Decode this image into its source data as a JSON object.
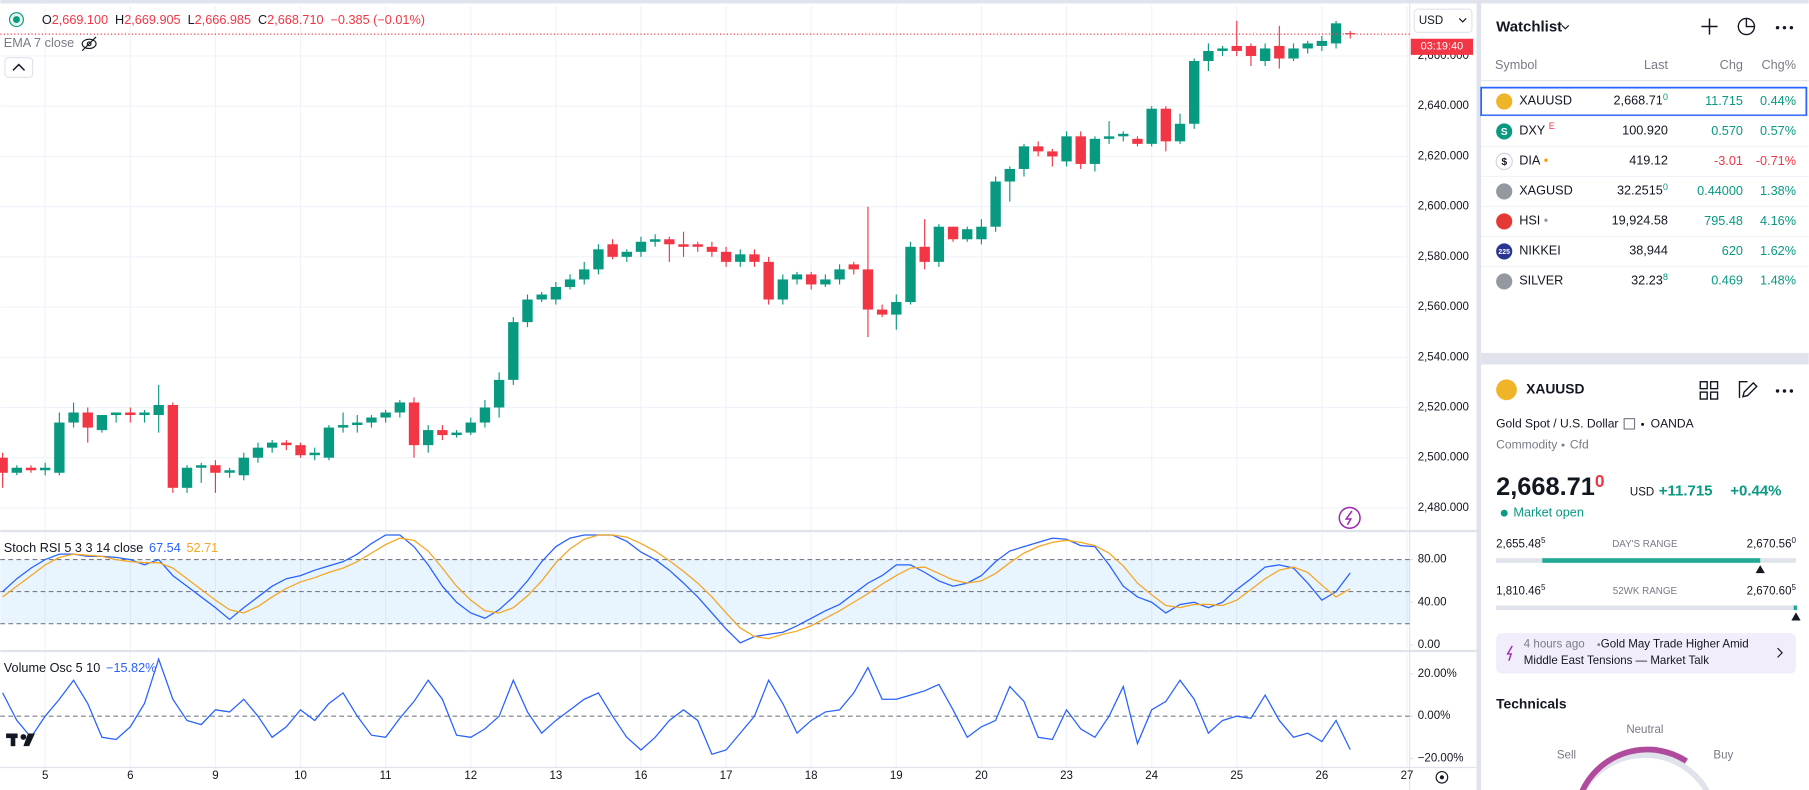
{
  "chart_header": {
    "ohlc": [
      {
        "key": "O",
        "value": "2,669.100"
      },
      {
        "key": "H",
        "value": "2,669.905"
      },
      {
        "key": "L",
        "value": "2,666.985"
      },
      {
        "key": "C",
        "value": "2,668.710"
      }
    ],
    "change": "−0.385 (−0.01%)",
    "indicator": "EMA 7 close",
    "currency": "USD",
    "countdown": "03:19:40"
  },
  "chart_data": [
    {
      "type": "candlestick",
      "up_color": "#089981",
      "down_color": "#f23645",
      "grid": true,
      "categories": [
        null,
        null,
        null,
        "5",
        null,
        null,
        null,
        null,
        null,
        "6",
        null,
        null,
        null,
        null,
        null,
        "9",
        null,
        null,
        null,
        null,
        null,
        "10",
        null,
        null,
        null,
        null,
        null,
        "11",
        null,
        null,
        null,
        null,
        null,
        "12",
        null,
        null,
        null,
        null,
        null,
        "13",
        null,
        null,
        null,
        null,
        null,
        "16",
        null,
        null,
        null,
        null,
        null,
        "17",
        null,
        null,
        null,
        null,
        null,
        "18",
        null,
        null,
        null,
        null,
        null,
        "19",
        null,
        null,
        null,
        null,
        null,
        "20",
        null,
        null,
        null,
        null,
        null,
        "23",
        null,
        null,
        null,
        null,
        null,
        "24",
        null,
        null,
        null,
        null,
        null,
        "25",
        null,
        null,
        null,
        null,
        null,
        "26",
        null,
        null,
        null,
        null,
        null,
        "27"
      ],
      "open": [
        2500,
        2494,
        2496,
        2495,
        2494,
        2514,
        2518,
        2511,
        2517,
        2518,
        2517,
        2517,
        2521,
        2488,
        2496,
        2497,
        2494,
        2493,
        2500,
        2504,
        2506,
        2505,
        2501,
        2500,
        2512,
        2513,
        2514,
        2516,
        2518,
        2522,
        2505,
        2511,
        2509,
        2510,
        2514,
        2520,
        2531,
        2554,
        2563,
        2563,
        2568,
        2571,
        2575,
        2585,
        2580,
        2582,
        2586,
        2587,
        2585,
        2585,
        2584,
        2582,
        2578,
        2581,
        2578,
        2563,
        2571,
        2573,
        2569,
        2571,
        2577,
        2575,
        2559,
        2557,
        2562,
        2584,
        2578,
        2592,
        2587,
        2587,
        2592,
        2610,
        2615,
        2624,
        2622,
        2618,
        2628,
        2617,
        2627,
        2628,
        2627,
        2625,
        2639,
        2626,
        2633,
        2658,
        2662,
        2664,
        2664,
        2658,
        2664,
        2659,
        2663,
        2664,
        2665,
        2669.1,
        null,
        null,
        null,
        null
      ],
      "high": [
        2502,
        2497,
        2497,
        2498,
        2518,
        2522,
        2520,
        2517,
        2518,
        2520,
        2519,
        2529,
        2522,
        2497,
        2498,
        2499,
        2496,
        2502,
        2506,
        2507,
        2507,
        2506,
        2504,
        2513,
        2518,
        2517,
        2517,
        2519,
        2523,
        2524,
        2513,
        2513,
        2511,
        2516,
        2523,
        2534,
        2556,
        2565,
        2566,
        2570,
        2573,
        2578,
        2585,
        2587,
        2583,
        2588,
        2589,
        2588,
        2590,
        2586,
        2586,
        2584,
        2583,
        2583,
        2580,
        2573,
        2574,
        2574,
        2573,
        2577,
        2578,
        2600,
        2561,
        2565,
        2586,
        2595,
        2593,
        2592,
        2592,
        2595,
        2612,
        2616,
        2625,
        2626,
        2623,
        2630,
        2630,
        2628,
        2634,
        2630,
        2628,
        2640,
        2640,
        2637,
        2659,
        2665,
        2664,
        2674,
        2665,
        2665,
        2672,
        2665,
        2666,
        2668,
        2674,
        2669.905,
        null,
        null,
        null,
        null
      ],
      "low": [
        2488,
        2493,
        2494,
        2493,
        2493,
        2512,
        2506,
        2510,
        2514,
        2514,
        2514,
        2510,
        2486,
        2486,
        2490,
        2486,
        2492,
        2491,
        2498,
        2502,
        2503,
        2500,
        2499,
        2499,
        2510,
        2510,
        2512,
        2514,
        2516,
        2500,
        2502,
        2507,
        2508,
        2509,
        2512,
        2516,
        2529,
        2552,
        2562,
        2561,
        2567,
        2569,
        2573,
        2579,
        2578,
        2580,
        2584,
        2578,
        2580,
        2582,
        2580,
        2576,
        2576,
        2576,
        2561,
        2561,
        2569,
        2567,
        2568,
        2569,
        2573,
        2548,
        2556,
        2551,
        2561,
        2575,
        2576,
        2586,
        2586,
        2585,
        2590,
        2602,
        2612,
        2620,
        2616,
        2616,
        2615,
        2614,
        2625,
        2626,
        2624,
        2624,
        2622,
        2625,
        2631,
        2654,
        2660,
        2660,
        2656,
        2656,
        2655,
        2658,
        2661,
        2662,
        2663,
        2666.985,
        null,
        null,
        null,
        null
      ],
      "close": [
        2494,
        2496,
        2495,
        2496,
        2514,
        2518,
        2512,
        2517,
        2518,
        2517,
        2518,
        2521,
        2488,
        2496,
        2497,
        2494,
        2495,
        2500,
        2504,
        2506,
        2505,
        2501,
        2502,
        2512,
        2513,
        2514,
        2516,
        2518,
        2522,
        2505,
        2511,
        2509,
        2510,
        2514,
        2520,
        2531,
        2554,
        2563,
        2565,
        2568,
        2571,
        2575,
        2583,
        2580,
        2582,
        2586,
        2587,
        2585,
        2584,
        2584,
        2582,
        2578,
        2581,
        2578,
        2563,
        2571,
        2573,
        2569,
        2571,
        2575,
        2575,
        2559,
        2557,
        2562,
        2584,
        2578,
        2592,
        2587,
        2591,
        2592,
        2610,
        2615,
        2624,
        2622,
        2620,
        2628,
        2617,
        2627,
        2628,
        2629,
        2625,
        2639,
        2626,
        2633,
        2658,
        2662,
        2663,
        2662,
        2660,
        2663,
        2659,
        2663,
        2665,
        2666,
        2673,
        2668.71,
        null,
        null,
        null,
        null
      ],
      "ylim": [
        2471,
        2680
      ],
      "yticks": [
        {
          "value": 2480,
          "label": "2,480.000"
        },
        {
          "value": 2500,
          "label": "2,500.000"
        },
        {
          "value": 2520,
          "label": "2,520.000"
        },
        {
          "value": 2540,
          "label": "2,540.000"
        },
        {
          "value": 2560,
          "label": "2,560.000"
        },
        {
          "value": 2580,
          "label": "2,580.000"
        },
        {
          "value": 2600,
          "label": "2,600.000"
        },
        {
          "value": 2620,
          "label": "2,620.000"
        },
        {
          "value": 2640,
          "label": "2,640.000"
        },
        {
          "value": 2660,
          "label": "2,660.000"
        }
      ]
    },
    {
      "type": "line",
      "title": "Stoch RSI 5 3 3 14 close",
      "grid": true,
      "levels": [
        80,
        50,
        20
      ],
      "band_color": "#2196f3",
      "series": [
        {
          "color": "#2962ff",
          "values": [
            50,
            62,
            72,
            80,
            85,
            85,
            83,
            83,
            82,
            80,
            75,
            80,
            65,
            55,
            45,
            35,
            24,
            35,
            45,
            55,
            62,
            65,
            70,
            74,
            78,
            85,
            95,
            103,
            103,
            92,
            75,
            55,
            40,
            30,
            25,
            33,
            45,
            60,
            78,
            92,
            100,
            103,
            103,
            103,
            97,
            87,
            80,
            70,
            58,
            45,
            30,
            15,
            2,
            8,
            10,
            12,
            18,
            25,
            32,
            38,
            48,
            58,
            65,
            75,
            75,
            68,
            60,
            55,
            58,
            65,
            78,
            88,
            92,
            96,
            100,
            99,
            93,
            92,
            75,
            55,
            45,
            40,
            30,
            38,
            40,
            35,
            40,
            52,
            62,
            73,
            75,
            72,
            58,
            42,
            50,
            67.54,
            null,
            null,
            null,
            null
          ]
        },
        {
          "color": "#f5a623",
          "values": [
            45,
            55,
            65,
            75,
            82,
            85,
            84,
            83,
            80,
            78,
            77,
            77,
            72,
            62,
            52,
            42,
            33,
            30,
            36,
            45,
            53,
            59,
            63,
            68,
            72,
            78,
            86,
            94,
            100,
            98,
            88,
            72,
            55,
            42,
            32,
            30,
            35,
            46,
            60,
            77,
            90,
            99,
            103,
            103,
            101,
            95,
            88,
            79,
            69,
            58,
            45,
            30,
            16,
            8,
            6,
            10,
            13,
            18,
            25,
            32,
            40,
            48,
            57,
            65,
            72,
            73,
            67,
            61,
            58,
            60,
            67,
            77,
            86,
            92,
            96,
            98,
            96,
            93,
            86,
            74,
            58,
            47,
            37,
            35,
            38,
            38,
            37,
            42,
            52,
            62,
            70,
            73,
            68,
            56,
            45,
            52.71,
            null,
            null,
            null,
            null
          ]
        }
      ],
      "ylim": [
        -4,
        105
      ],
      "yticks": [
        {
          "value": 0,
          "label": "0.00"
        },
        {
          "value": 40,
          "label": "40.00"
        },
        {
          "value": 80,
          "label": "80.00"
        }
      ]
    },
    {
      "type": "line",
      "title": "Volume Osc 5 10",
      "grid": true,
      "levels": [
        0
      ],
      "series": [
        {
          "color": "#2962ff",
          "values": [
            11,
            -2,
            -10,
            0,
            8,
            17,
            6,
            -10,
            -11,
            -5,
            6,
            27,
            8,
            -2,
            -4,
            3,
            2,
            8,
            0,
            -10,
            -5,
            3,
            -2,
            6,
            11,
            0,
            -9,
            -10,
            -1,
            7,
            17,
            8,
            -9,
            -10,
            -6,
            0,
            17,
            2,
            -8,
            -2,
            3,
            8,
            11,
            0,
            -10,
            -16,
            -10,
            -2,
            3,
            -2,
            -18,
            -16,
            -8,
            0,
            17,
            6,
            -8,
            -2,
            2,
            3,
            11,
            23,
            8,
            8,
            10,
            12,
            15,
            3,
            -10,
            -5,
            -2,
            14,
            7,
            -10,
            -11,
            3,
            -6,
            -10,
            0,
            14,
            -13,
            3,
            7,
            17,
            8,
            -8,
            -2,
            0,
            -1,
            10,
            -2,
            -10,
            -8,
            -12,
            -2,
            -15.82,
            null,
            null,
            null,
            null
          ],
          "value_labels": [
            null,
            null,
            null,
            null,
            null,
            null,
            null,
            null,
            null,
            null,
            null,
            null,
            null,
            null,
            null,
            null,
            null,
            null,
            null,
            null,
            null,
            null,
            null,
            null,
            null,
            null,
            null,
            null,
            null,
            null,
            null,
            null,
            null,
            null,
            null,
            null,
            null,
            null,
            null,
            null,
            null,
            null,
            null,
            null,
            null,
            null,
            null,
            null,
            null,
            null,
            null,
            null,
            null,
            null,
            null,
            null,
            null,
            null,
            null,
            null,
            null,
            null,
            null,
            null,
            null,
            null,
            null,
            null,
            null,
            null,
            null,
            null,
            null,
            null,
            null,
            null,
            null,
            null,
            null,
            null,
            null,
            null,
            null,
            null,
            null,
            null,
            null,
            null,
            null,
            null,
            null,
            null,
            null,
            null,
            null,
            "−15.82%",
            null,
            null,
            null,
            null
          ]
        }
      ],
      "ylim": [
        -24,
        30
      ],
      "yticks": [
        {
          "value": -20,
          "label": "−20.00%"
        },
        {
          "value": 0,
          "label": "0.00%"
        },
        {
          "value": 20,
          "label": "20.00%"
        }
      ]
    }
  ],
  "watchlist": {
    "title": "Watchlist",
    "columns": [
      "Symbol",
      "Last",
      "Chg",
      "Chg%"
    ],
    "rows": [
      {
        "symbol": "XAUUSD",
        "last": "2,668.71",
        "last_sup": "0",
        "chg": "11.715",
        "chg_pct": "0.44%",
        "color": "#089981",
        "icon_color": "#f0b429"
      },
      {
        "symbol": "DXY",
        "badge": "E",
        "last": "100.920",
        "chg": "0.570",
        "chg_pct": "0.57%",
        "color": "#089981",
        "icon_color": "#089981",
        "icon_text": "S"
      },
      {
        "symbol": "DIA",
        "badge": "•",
        "last": "419.12",
        "chg": "-3.01",
        "chg_pct": "-0.71%",
        "color": "#f23645",
        "icon_color": "#ffffff",
        "icon_text": "$"
      },
      {
        "symbol": "XAGUSD",
        "last": "32.2515",
        "last_sup": "0",
        "chg": "0.44000",
        "chg_pct": "1.38%",
        "color": "#089981",
        "icon_color": "#9598a1"
      },
      {
        "symbol": "HSI",
        "badge": "•",
        "last": "19,924.58",
        "chg": "795.48",
        "chg_pct": "4.16%",
        "color": "#089981",
        "icon_color": "#e53935"
      },
      {
        "symbol": "NIKKEI",
        "last": "38,944",
        "chg": "620",
        "chg_pct": "1.62%",
        "color": "#089981",
        "icon_color": "#283593",
        "icon_text": "225"
      },
      {
        "symbol": "SILVER",
        "last": "32.23",
        "last_sup": "8",
        "chg": "0.469",
        "chg_pct": "1.48%",
        "color": "#089981",
        "icon_color": "#9598a1"
      }
    ]
  },
  "details": {
    "symbol": "XAUUSD",
    "name": "Gold Spot / U.S. Dollar",
    "exchange": "OANDA",
    "category": "Commodity",
    "kind": "Cfd",
    "price": "2,668.71",
    "price_sup": "0",
    "currency": "USD",
    "change": "+11.715",
    "change_pct": "+0.44%",
    "status": "Market open",
    "day_range": {
      "low": "2,655.48",
      "low_sup": "5",
      "label": "DAY'S RANGE",
      "high": "2,670.56",
      "high_sup": "0"
    },
    "week52_range": {
      "low": "1,810.46",
      "low_sup": "5",
      "label": "52WK RANGE",
      "high": "2,670.60",
      "high_sup": "5"
    },
    "news": {
      "time": "4 hours ago",
      "headline_lines": [
        "Gold May Trade Higher Amid",
        "Middle East Tensions — Market Talk"
      ]
    },
    "technicals": {
      "title": "Technicals",
      "neutral": "Neutral",
      "sell": "Sell",
      "buy": "Buy"
    }
  }
}
